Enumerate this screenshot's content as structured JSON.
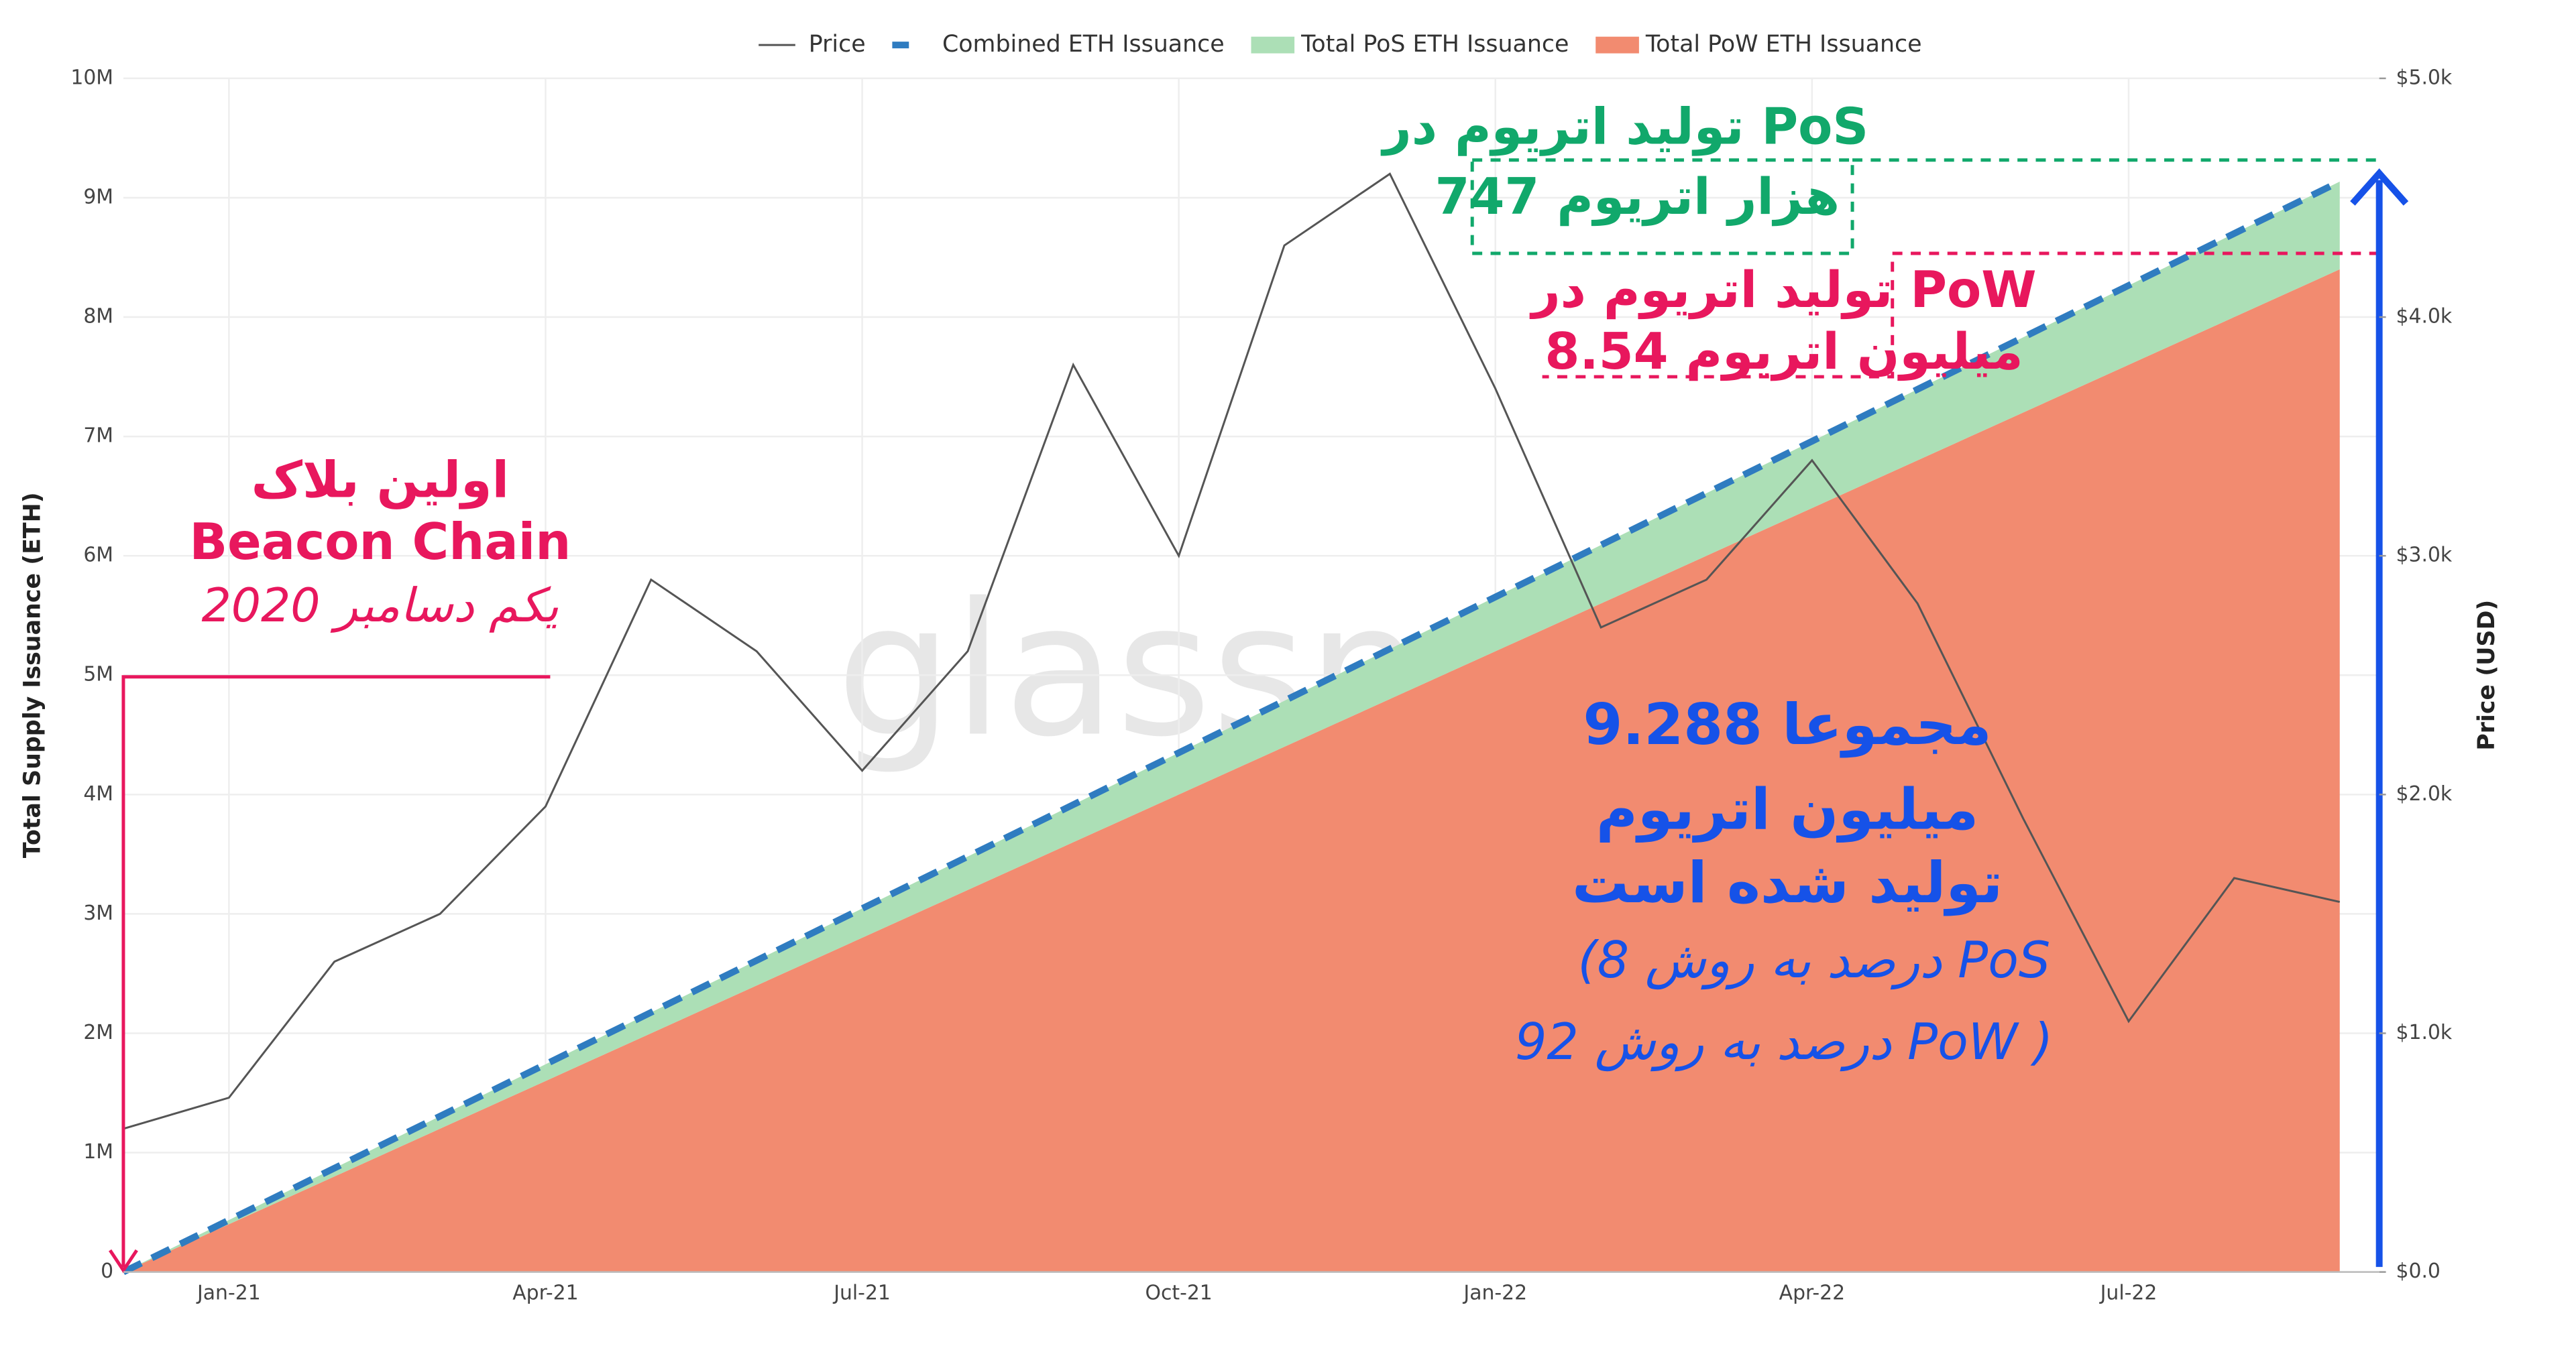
{
  "chart_data": {
    "type": "area",
    "watermark": "glassnode",
    "y_label": "Total Supply Issuance (ETH)",
    "y2_label": "Price (USD)",
    "legend_position": "top",
    "categories": [
      null,
      "Jan-21",
      null,
      null,
      "Apr-21",
      null,
      null,
      "Jul-21",
      null,
      null,
      "Oct-21",
      null,
      null,
      "Jan-22",
      null,
      null,
      "Apr-22",
      null,
      null,
      "Jul-22",
      null,
      null
    ],
    "ylim": [
      0,
      10000000
    ],
    "yticks": [
      {
        "value": 0,
        "label": "0"
      },
      {
        "value": 1000000,
        "label": "1M"
      },
      {
        "value": 2000000,
        "label": "2M"
      },
      {
        "value": 3000000,
        "label": "3M"
      },
      {
        "value": 4000000,
        "label": "4M"
      },
      {
        "value": 5000000,
        "label": "5M"
      },
      {
        "value": 6000000,
        "label": "6M"
      },
      {
        "value": 7000000,
        "label": "7M"
      },
      {
        "value": 8000000,
        "label": "8M"
      },
      {
        "value": 9000000,
        "label": "9M"
      },
      {
        "value": 10000000,
        "label": "10M"
      }
    ],
    "y2lim": [
      0,
      5000
    ],
    "y2ticks": [
      {
        "value": 0,
        "label": "$0.0"
      },
      {
        "value": 1000,
        "label": "$1.0k"
      },
      {
        "value": 2000,
        "label": "$2.0k"
      },
      {
        "value": 3000,
        "label": "$3.0k"
      },
      {
        "value": 4000,
        "label": "$4.0k"
      },
      {
        "value": 5000,
        "label": "$5.0k"
      }
    ],
    "series": [
      {
        "name": "Price",
        "color": "#555555",
        "kind": "line",
        "axis": "y2",
        "values": [
          600,
          730,
          1300,
          1500,
          1950,
          2900,
          2600,
          2100,
          2600,
          3800,
          3000,
          4300,
          4600,
          3700,
          2700,
          2900,
          3400,
          2800,
          1900,
          1050,
          1650,
          1550
        ]
      },
      {
        "name": "Combined ETH Issuance",
        "color": "#2f7cc0",
        "kind": "line",
        "dashed": true,
        "values": [
          0,
          435000,
          870000,
          1305000,
          1740000,
          2175000,
          2610000,
          3045000,
          3480000,
          3915000,
          4350000,
          4785000,
          5220000,
          5655000,
          6090000,
          6525000,
          6960000,
          7395000,
          7830000,
          8265000,
          8700000,
          9135000
        ]
      },
      {
        "name": "Total PoS ETH Issuance",
        "color": "#acdfb6",
        "kind": "area",
        "stack": true,
        "values": [
          0,
          35000,
          70000,
          105000,
          140000,
          175000,
          210000,
          245000,
          280000,
          315000,
          350000,
          385000,
          420000,
          455000,
          490000,
          525000,
          560000,
          595000,
          630000,
          665000,
          700000,
          735000
        ]
      },
      {
        "name": "Total PoW ETH Issuance",
        "color": "#f28b70",
        "kind": "area",
        "stack": true,
        "values": [
          0,
          400000,
          800000,
          1200000,
          1600000,
          2000000,
          2400000,
          2800000,
          3200000,
          3600000,
          4000000,
          4400000,
          4800000,
          5200000,
          5600000,
          6000000,
          6400000,
          6800000,
          7200000,
          7600000,
          8000000,
          8400000
        ]
      }
    ],
    "annotations": [
      {
        "text": "اولین بلاک",
        "color": "#e8175d"
      },
      {
        "text": "Beacon Chain",
        "color": "#e8175d"
      },
      {
        "text": "یکم دسامبر 2020",
        "color": "#e8175d"
      },
      {
        "text": "تولید اتریوم در PoS",
        "color": "#11a86b"
      },
      {
        "text": "747 هزار اتریوم",
        "color": "#11a86b"
      },
      {
        "text": "تولید اتریوم در PoW",
        "color": "#e8175d"
      },
      {
        "text": "8.54 میلیون اتریوم",
        "color": "#e8175d"
      },
      {
        "text": "مجموعا 9.288",
        "color": "#1652e8"
      },
      {
        "text": "میلیون اتریوم",
        "color": "#1652e8"
      },
      {
        "text": "تولید شده است",
        "color": "#1652e8"
      },
      {
        "text": "(8 درصد به روش PoS",
        "color": "#1652e8"
      },
      {
        "text": "92 درصد به روش PoW )",
        "color": "#1652e8"
      }
    ]
  }
}
